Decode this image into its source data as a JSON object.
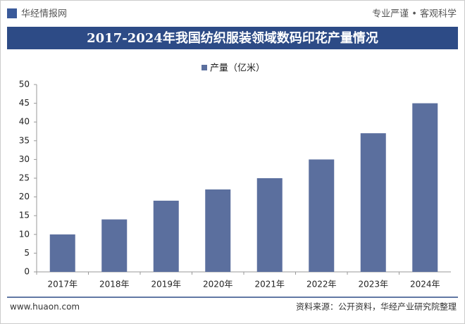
{
  "header": {
    "brand": "华经情报网",
    "slogan": "专业严谨 • 客观科学"
  },
  "chart_data": {
    "type": "bar",
    "title": "2017-2024年我国纺织服装领域数码印花产量情况",
    "categories": [
      "2017年",
      "2018年",
      "2019年",
      "2020年",
      "2021年",
      "2022年",
      "2023年",
      "2024年"
    ],
    "series": [
      {
        "name": "产量（亿米）",
        "color": "#5b6f9e",
        "values": [
          10,
          14,
          19,
          22,
          25,
          30,
          37,
          45
        ]
      }
    ],
    "ylim": [
      0,
      50
    ],
    "yticks": [
      0,
      5,
      10,
      15,
      20,
      25,
      30,
      35,
      40,
      45,
      50
    ],
    "grid": false,
    "legend": "top"
  },
  "footer": {
    "website": "www.huaon.com",
    "source": "资料来源：公开资料，华经产业研究院整理"
  }
}
